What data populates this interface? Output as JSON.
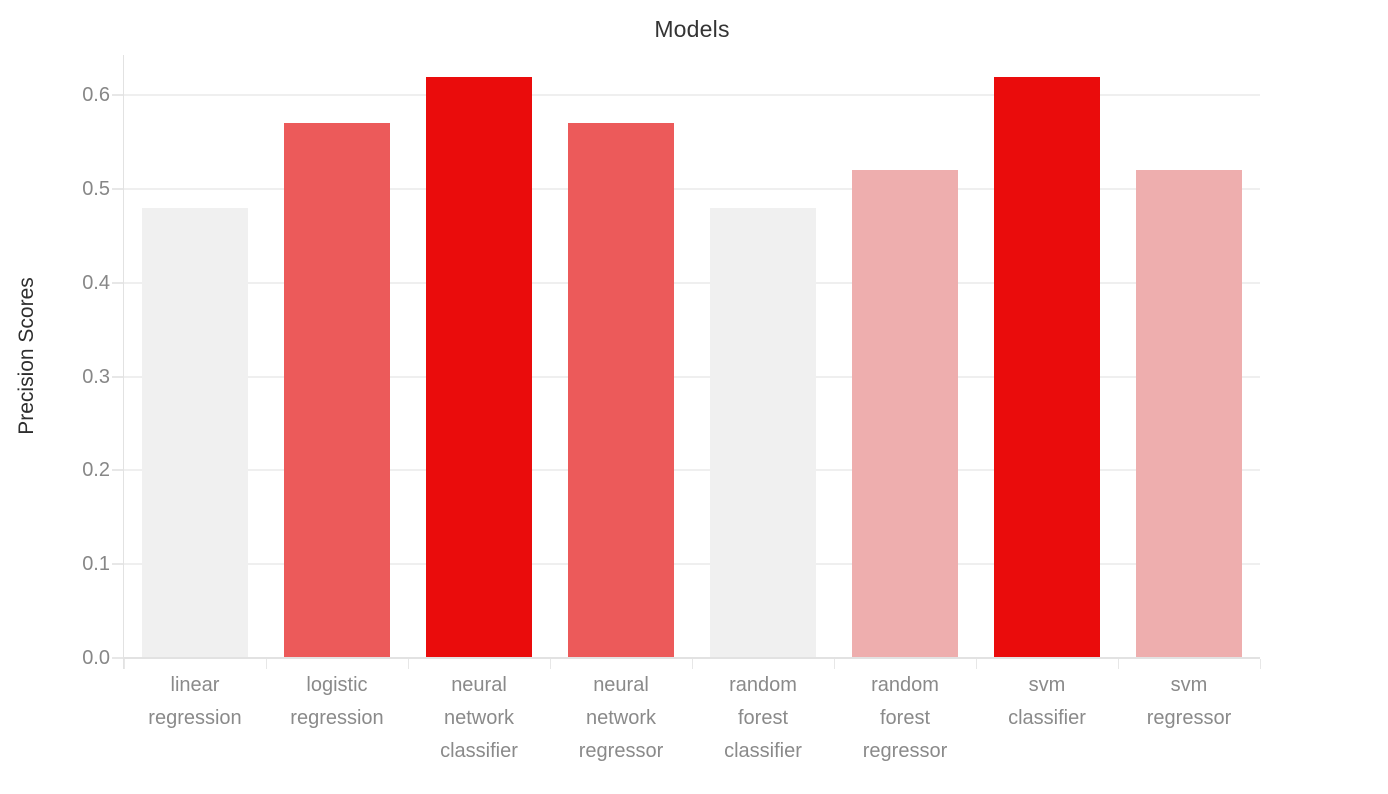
{
  "chart_data": {
    "type": "bar",
    "title": "Models",
    "xlabel": "",
    "ylabel": "Precision Scores",
    "categories": [
      "linear regression",
      "logistic regression",
      "neural network classifier",
      "neural network regressor",
      "random forest classifier",
      "random forest regressor",
      "svm classifier",
      "svm regressor"
    ],
    "values": [
      0.48,
      0.57,
      0.62,
      0.57,
      0.48,
      0.52,
      0.62,
      0.52
    ],
    "bar_colors": [
      "#f0f0f0",
      "#ec5a5a",
      "#ea0c0c",
      "#ec5a5a",
      "#f0f0f0",
      "#eeaeae",
      "#ea0c0c",
      "#eeaeae"
    ],
    "ytick_labels": [
      "0.0",
      "0.1",
      "0.2",
      "0.3",
      "0.4",
      "0.5",
      "0.6"
    ],
    "ytick_values": [
      0,
      0.1,
      0.2,
      0.3,
      0.4,
      0.5,
      0.6
    ],
    "ylim": [
      0,
      0.643
    ],
    "grid": true,
    "legend": false
  },
  "colors": {
    "background": "#ffffff",
    "gridline": "#efefef",
    "axis_line": "#e2e2e2",
    "tick_mark": "#e7e7e7",
    "y_tick_label": "#878787",
    "x_tick_label": "#8a8a8a",
    "title_text": "#343434",
    "ylabel_text": "#2e2e2e",
    "value_low": "#f0f0f0",
    "value_mid_low": "#eeaeae",
    "value_mid_high": "#ec5a5a",
    "value_high": "#ea0c0c"
  }
}
